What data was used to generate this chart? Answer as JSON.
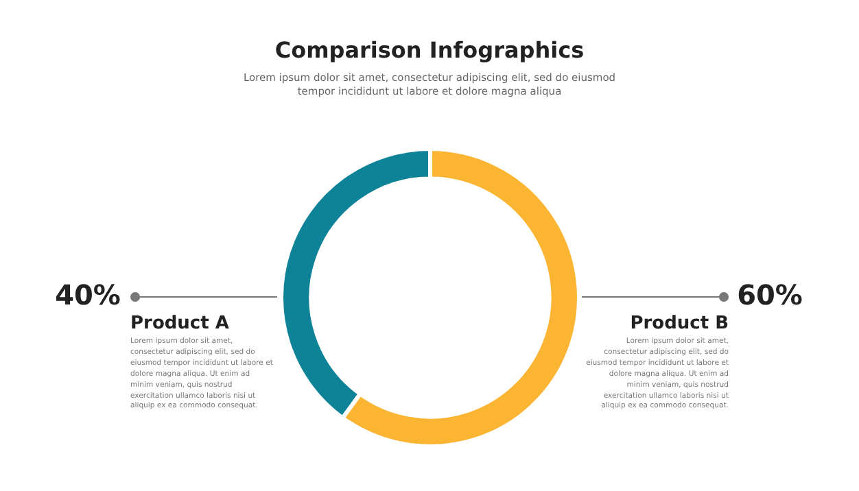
{
  "chart_data": {
    "type": "donut",
    "title": "Comparison Infographics",
    "subtitle": "Lorem ipsum dolor sit amet, consectetur adipiscing elit, sed do eiusmod tempor incididunt ut labore et dolore magna aliqua",
    "categories": [
      "Product A",
      "Product B"
    ],
    "values": [
      40,
      60
    ],
    "colors": [
      "#0e8398",
      "#fbb532"
    ],
    "value_labels": [
      "40%",
      "60%"
    ],
    "legend": false,
    "annotations": [
      "Lorem ipsum dolor sit amet, consectetur adipiscing elit, sed do eiusmod tempor incididunt ut labore et dolore magna aliqua. Ut enim ad minim veniam, quis nostrud exercitation ullamco laboris nisi ut aliquip ex ea commodo consequat.",
      "Lorem ipsum dolor sit amet, consectetur adipiscing elit, sed do eiusmod tempor incididunt ut labore et dolore magna aliqua. Ut enim ad minim veniam, quis nostrud exercitation ullamco laboris nisi ut aliquip ex ea commodo consequat."
    ]
  }
}
